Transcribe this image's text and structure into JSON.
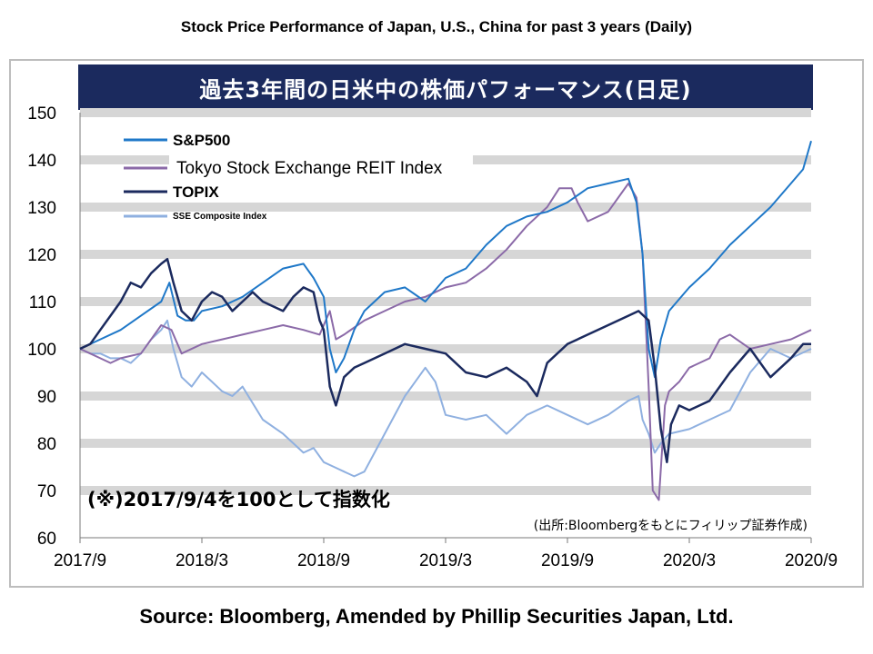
{
  "outer_title": "Stock Price Performance of Japan, U.S., China for past 3 years (Daily)",
  "source": "Source: Bloomberg, Amended by Phillip Securities Japan, Ltd.",
  "chart_data": {
    "type": "line",
    "title": "過去3年間の日米中の株価パフォーマンス(日足)",
    "annotation": "(※)2017/9/4を100として指数化",
    "source_note": "(出所:Bloombergをもとにフィリップ証券作成)",
    "xlabel": "",
    "ylabel": "",
    "ylim": [
      60,
      150
    ],
    "yticks": [
      60,
      70,
      80,
      90,
      100,
      110,
      120,
      130,
      140,
      150
    ],
    "xticks": [
      "2017/9",
      "2018/3",
      "2018/9",
      "2019/3",
      "2019/9",
      "2020/3",
      "2020/9"
    ],
    "grid": "horizontal-bands",
    "legend_position": "top-left",
    "series": [
      {
        "name": "S&P500",
        "color": "#1f78c8",
        "width": 2,
        "points": [
          [
            0,
            100
          ],
          [
            1,
            102
          ],
          [
            2,
            104
          ],
          [
            3,
            107
          ],
          [
            4,
            110
          ],
          [
            4.4,
            114
          ],
          [
            4.8,
            107
          ],
          [
            5.2,
            106
          ],
          [
            5.6,
            106
          ],
          [
            6,
            108
          ],
          [
            7,
            109
          ],
          [
            8,
            111
          ],
          [
            9,
            114
          ],
          [
            10,
            117
          ],
          [
            11,
            118
          ],
          [
            11.5,
            115
          ],
          [
            12,
            111
          ],
          [
            12.3,
            100
          ],
          [
            12.6,
            95
          ],
          [
            13,
            98
          ],
          [
            13.5,
            104
          ],
          [
            14,
            108
          ],
          [
            15,
            112
          ],
          [
            16,
            113
          ],
          [
            17,
            110
          ],
          [
            18,
            115
          ],
          [
            19,
            117
          ],
          [
            20,
            122
          ],
          [
            21,
            126
          ],
          [
            22,
            128
          ],
          [
            23,
            129
          ],
          [
            24,
            131
          ],
          [
            25,
            134
          ],
          [
            26,
            135
          ],
          [
            27,
            136
          ],
          [
            27.4,
            131
          ],
          [
            27.7,
            120
          ],
          [
            28,
            100
          ],
          [
            28.3,
            94
          ],
          [
            28.6,
            102
          ],
          [
            29,
            108
          ],
          [
            30,
            113
          ],
          [
            31,
            117
          ],
          [
            32,
            122
          ],
          [
            33,
            126
          ],
          [
            34,
            130
          ],
          [
            35,
            135
          ],
          [
            35.6,
            138
          ],
          [
            36,
            144
          ]
        ]
      },
      {
        "name": "Tokyo Stock Exchange REIT Index",
        "color": "#8b6aa8",
        "width": 2,
        "points": [
          [
            0,
            100
          ],
          [
            0.5,
            99
          ],
          [
            1,
            98
          ],
          [
            1.5,
            97
          ],
          [
            2,
            98
          ],
          [
            3,
            99
          ],
          [
            3.5,
            102
          ],
          [
            4,
            105
          ],
          [
            4.5,
            104
          ],
          [
            5,
            99
          ],
          [
            6,
            101
          ],
          [
            7,
            102
          ],
          [
            8,
            103
          ],
          [
            9,
            104
          ],
          [
            10,
            105
          ],
          [
            11,
            104
          ],
          [
            11.8,
            103
          ],
          [
            12.3,
            108
          ],
          [
            12.6,
            102
          ],
          [
            13,
            103
          ],
          [
            14,
            106
          ],
          [
            15,
            108
          ],
          [
            16,
            110
          ],
          [
            17,
            111
          ],
          [
            18,
            113
          ],
          [
            19,
            114
          ],
          [
            20,
            117
          ],
          [
            21,
            121
          ],
          [
            22,
            126
          ],
          [
            23,
            130
          ],
          [
            23.6,
            134
          ],
          [
            24.2,
            134
          ],
          [
            24.5,
            131
          ],
          [
            25,
            127
          ],
          [
            26,
            129
          ],
          [
            27,
            135
          ],
          [
            27.4,
            132
          ],
          [
            27.7,
            120
          ],
          [
            28,
            92
          ],
          [
            28.2,
            70
          ],
          [
            28.5,
            68
          ],
          [
            28.8,
            88
          ],
          [
            29,
            91
          ],
          [
            29.5,
            93
          ],
          [
            30,
            96
          ],
          [
            31,
            98
          ],
          [
            31.5,
            102
          ],
          [
            32,
            103
          ],
          [
            33,
            100
          ],
          [
            34,
            101
          ],
          [
            35,
            102
          ],
          [
            36,
            104
          ]
        ]
      },
      {
        "name": "TOPIX",
        "color": "#1b2a5e",
        "width": 2.5,
        "points": [
          [
            0,
            100
          ],
          [
            0.5,
            101
          ],
          [
            1,
            104
          ],
          [
            1.5,
            107
          ],
          [
            2,
            110
          ],
          [
            2.5,
            114
          ],
          [
            3,
            113
          ],
          [
            3.5,
            116
          ],
          [
            4,
            118
          ],
          [
            4.3,
            119
          ],
          [
            4.6,
            114
          ],
          [
            5,
            108
          ],
          [
            5.5,
            106
          ],
          [
            6,
            110
          ],
          [
            6.5,
            112
          ],
          [
            7,
            111
          ],
          [
            7.5,
            108
          ],
          [
            8,
            110
          ],
          [
            8.5,
            112
          ],
          [
            9,
            110
          ],
          [
            9.5,
            109
          ],
          [
            10,
            108
          ],
          [
            10.5,
            111
          ],
          [
            11,
            113
          ],
          [
            11.5,
            112
          ],
          [
            11.8,
            106
          ],
          [
            12,
            104
          ],
          [
            12.3,
            92
          ],
          [
            12.6,
            88
          ],
          [
            13,
            94
          ],
          [
            13.5,
            96
          ],
          [
            14,
            97
          ],
          [
            15,
            99
          ],
          [
            16,
            101
          ],
          [
            17,
            100
          ],
          [
            18,
            99
          ],
          [
            19,
            95
          ],
          [
            20,
            94
          ],
          [
            21,
            96
          ],
          [
            22,
            93
          ],
          [
            22.5,
            90
          ],
          [
            23,
            97
          ],
          [
            24,
            101
          ],
          [
            25,
            103
          ],
          [
            26,
            105
          ],
          [
            27,
            107
          ],
          [
            27.5,
            108
          ],
          [
            28,
            106
          ],
          [
            28.3,
            96
          ],
          [
            28.6,
            83
          ],
          [
            28.9,
            76
          ],
          [
            29.1,
            84
          ],
          [
            29.5,
            88
          ],
          [
            30,
            87
          ],
          [
            31,
            89
          ],
          [
            32,
            95
          ],
          [
            33,
            100
          ],
          [
            34,
            94
          ],
          [
            35,
            98
          ],
          [
            35.6,
            101
          ],
          [
            36,
            101
          ]
        ]
      },
      {
        "name": "SSE Composite Index",
        "color": "#8fb0e0",
        "width": 2,
        "points": [
          [
            0,
            100
          ],
          [
            0.5,
            99
          ],
          [
            1,
            99
          ],
          [
            1.5,
            98
          ],
          [
            2,
            98
          ],
          [
            2.5,
            97
          ],
          [
            3,
            99
          ],
          [
            3.5,
            102
          ],
          [
            4,
            104
          ],
          [
            4.3,
            106
          ],
          [
            4.6,
            100
          ],
          [
            5,
            94
          ],
          [
            5.5,
            92
          ],
          [
            6,
            95
          ],
          [
            6.5,
            93
          ],
          [
            7,
            91
          ],
          [
            7.5,
            90
          ],
          [
            8,
            92
          ],
          [
            9,
            85
          ],
          [
            10,
            82
          ],
          [
            11,
            78
          ],
          [
            11.5,
            79
          ],
          [
            12,
            76
          ],
          [
            12.5,
            75
          ],
          [
            13,
            74
          ],
          [
            13.5,
            73
          ],
          [
            14,
            74
          ],
          [
            15,
            82
          ],
          [
            16,
            90
          ],
          [
            16.5,
            93
          ],
          [
            17,
            96
          ],
          [
            17.5,
            93
          ],
          [
            18,
            86
          ],
          [
            19,
            85
          ],
          [
            20,
            86
          ],
          [
            21,
            82
          ],
          [
            22,
            86
          ],
          [
            23,
            88
          ],
          [
            24,
            86
          ],
          [
            25,
            84
          ],
          [
            26,
            86
          ],
          [
            27,
            89
          ],
          [
            27.5,
            90
          ],
          [
            27.7,
            85
          ],
          [
            28,
            82
          ],
          [
            28.3,
            78
          ],
          [
            28.6,
            80
          ],
          [
            29,
            82
          ],
          [
            30,
            83
          ],
          [
            31,
            85
          ],
          [
            32,
            87
          ],
          [
            33,
            95
          ],
          [
            34,
            100
          ],
          [
            35,
            98
          ],
          [
            36,
            100
          ]
        ]
      }
    ]
  }
}
